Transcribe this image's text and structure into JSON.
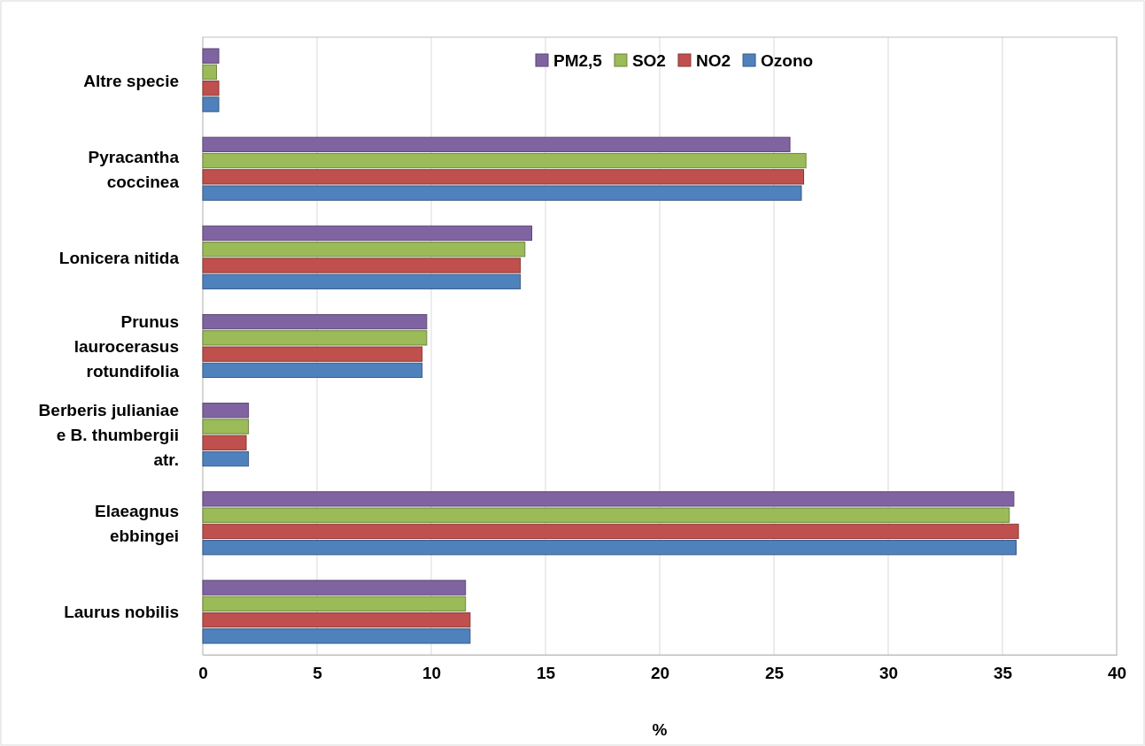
{
  "chart_data": {
    "type": "bar",
    "orientation": "horizontal",
    "xlabel": "%",
    "categories": [
      "Altre specie",
      "Pyracantha coccinea",
      "Lonicera nitida",
      "Prunus laurocerasus rotundifolia",
      "Berberis julianiae e B. thumbergii atr.",
      "Elaeagnus ebbingei",
      "Laurus nobilis"
    ],
    "series": [
      {
        "name": "PM2,5",
        "color": "#8064a2",
        "values": [
          0.7,
          25.7,
          14.4,
          9.8,
          2.0,
          35.5,
          11.5
        ]
      },
      {
        "name": "SO2",
        "color": "#9bbb59",
        "values": [
          0.6,
          26.4,
          14.1,
          9.8,
          2.0,
          35.3,
          11.5
        ]
      },
      {
        "name": "NO2",
        "color": "#c0504d",
        "values": [
          0.7,
          26.3,
          13.9,
          9.6,
          1.9,
          35.7,
          11.7
        ]
      },
      {
        "name": "Ozono",
        "color": "#4f81bd",
        "values": [
          0.7,
          26.2,
          13.9,
          9.6,
          2.0,
          35.6,
          11.7
        ]
      }
    ],
    "xlim": [
      0,
      40
    ],
    "xticks": [
      0,
      5,
      10,
      15,
      20,
      25,
      30,
      35,
      40
    ],
    "grid": "x",
    "legend": "top"
  }
}
